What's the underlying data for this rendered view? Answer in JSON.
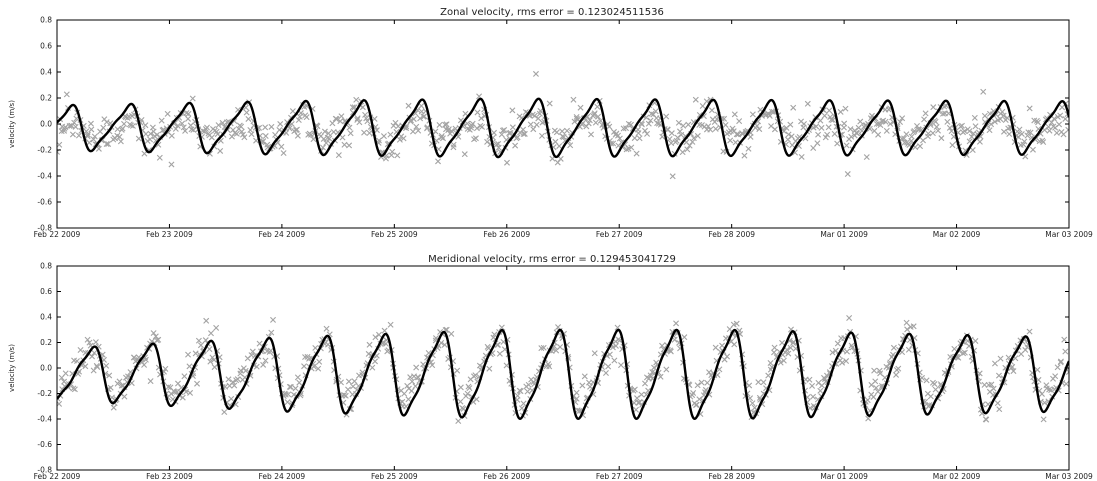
{
  "chart_data": [
    {
      "type": "scatter+line",
      "title": "Zonal velocity, rms error = 0.123024511536",
      "ylabel": "velocity (m/s)",
      "xlabel": "",
      "ylim": [
        -0.8,
        0.8
      ],
      "yticks": [
        "0.8",
        "0.6",
        "0.4",
        "0.2",
        "0.0",
        "-0.2",
        "-0.4",
        "-0.6",
        "-0.8"
      ],
      "x_range": [
        "2009-02-22",
        "2009-03-03"
      ],
      "xticks": [
        "Feb 22 2009",
        "Feb 23 2009",
        "Feb 24 2009",
        "Feb 25 2009",
        "Feb 26 2009",
        "Feb 27 2009",
        "Feb 28 2009",
        "Mar 01 2009",
        "Mar 02 2009",
        "Mar 03 2009"
      ],
      "grid": false,
      "tidal_period_hours": 12.42,
      "series": [
        {
          "role": "observed",
          "marker": "x",
          "color": "#a3a3a3",
          "baseline_y": -0.04,
          "amplitude_y": 0.11,
          "noise_y": 0.07,
          "points_per_day": 95
        },
        {
          "role": "model",
          "marker": "line",
          "color": "#000000",
          "baseline_y": -0.03,
          "amplitude_y": [
            0.17,
            0.2,
            0.22,
            0.21,
            0.2
          ],
          "amplitude_x": [
            "2009-02-22",
            "2009-02-24",
            "2009-02-26",
            "2009-02-28",
            "2009-03-03"
          ],
          "sample_points": [
            {
              "x": "2009-02-22 00:00",
              "y": 0.15
            },
            {
              "x": "2009-02-22 21:00",
              "y": 0.24
            },
            {
              "x": "2009-02-24 00:00",
              "y": 0.15
            },
            {
              "x": "2009-02-26 12:00",
              "y": -0.32
            },
            {
              "x": "2009-02-28 00:00",
              "y": -0.32
            },
            {
              "x": "2009-03-02 00:00",
              "y": -0.28
            },
            {
              "x": "2009-03-02 19:00",
              "y": 0.17
            },
            {
              "x": "2009-03-03 00:00",
              "y": -0.1
            }
          ]
        }
      ]
    },
    {
      "type": "scatter+line",
      "title": "Meridional velocity, rms error = 0.129453041729",
      "ylabel": "velocity (m/s)",
      "xlabel": "",
      "ylim": [
        -0.8,
        0.8
      ],
      "yticks": [
        "0.8",
        "0.6",
        "0.4",
        "0.2",
        "0.0",
        "-0.2",
        "-0.4",
        "-0.6",
        "-0.8"
      ],
      "x_range": [
        "2009-02-22",
        "2009-03-03"
      ],
      "xticks": [
        "Feb 22 2009",
        "Feb 23 2009",
        "Feb 24 2009",
        "Feb 25 2009",
        "Feb 26 2009",
        "Feb 27 2009",
        "Feb 28 2009",
        "Mar 01 2009",
        "Mar 02 2009",
        "Mar 03 2009"
      ],
      "grid": false,
      "tidal_period_hours": 12.42,
      "series": [
        {
          "role": "observed",
          "marker": "x",
          "color": "#a3a3a3",
          "baseline_y": -0.02,
          "amplitude_y": 0.3,
          "noise_y": 0.07,
          "points_per_day": 95
        },
        {
          "role": "model",
          "marker": "line",
          "color": "#000000",
          "baseline_y": -0.05,
          "amplitude_y": [
            0.21,
            0.3,
            0.36,
            0.36,
            0.3
          ],
          "amplitude_x": [
            "2009-02-22",
            "2009-02-24",
            "2009-02-26",
            "2009-02-28",
            "2009-03-03"
          ],
          "sample_points": [
            {
              "x": "2009-02-22 00:00",
              "y": -0.05
            },
            {
              "x": "2009-02-22 06:00",
              "y": -0.25
            },
            {
              "x": "2009-02-26 12:00",
              "y": 0.28
            },
            {
              "x": "2009-02-28 18:00",
              "y": -0.44
            },
            {
              "x": "2009-03-03 00:00",
              "y": 0.2
            }
          ]
        }
      ]
    }
  ]
}
